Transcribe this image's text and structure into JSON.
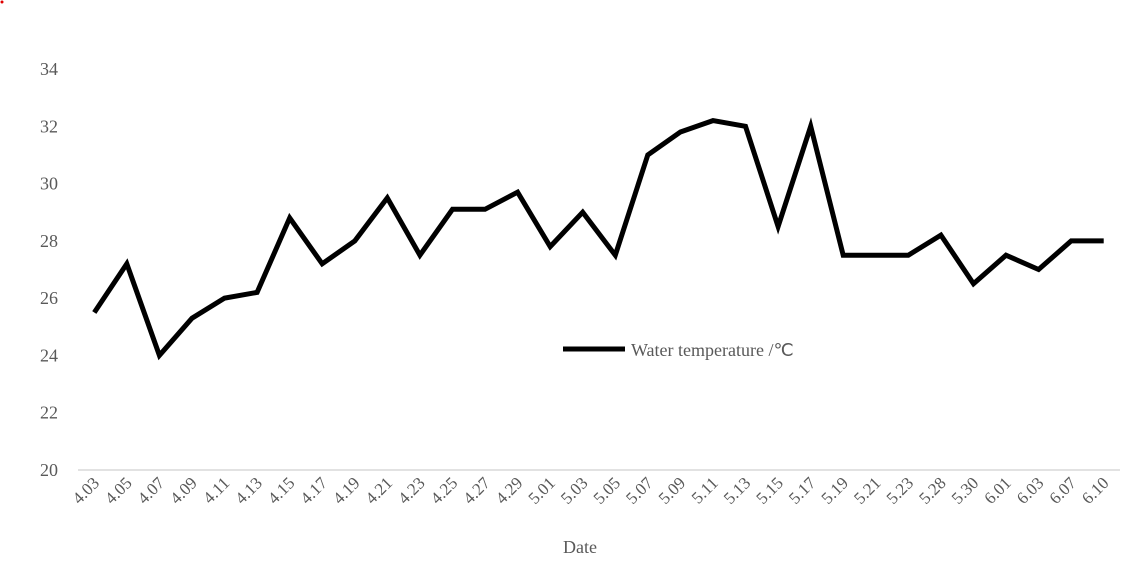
{
  "chart_data": {
    "type": "line",
    "title": "",
    "xlabel": "Date",
    "ylabel": "",
    "ylim": [
      20,
      34
    ],
    "yticks": [
      20,
      22,
      24,
      26,
      28,
      30,
      32,
      34
    ],
    "grid": false,
    "legend_position": "center",
    "categories": [
      "4.03",
      "4.05",
      "4.07",
      "4.09",
      "4.11",
      "4.13",
      "4.15",
      "4.17",
      "4.19",
      "4.21",
      "4.23",
      "4.25",
      "4.27",
      "4.29",
      "5.01",
      "5.03",
      "5.05",
      "5.07",
      "5.09",
      "5.11",
      "5.13",
      "5.15",
      "5.17",
      "5.19",
      "5.21",
      "5.23",
      "5.28",
      "5.30",
      "6.01",
      "6.03",
      "6.07",
      "6.10"
    ],
    "series": [
      {
        "name": "Water temperature /℃",
        "color": "#000000",
        "values": [
          25.5,
          27.2,
          24.0,
          25.3,
          26.0,
          26.2,
          28.8,
          27.2,
          28.0,
          29.5,
          27.5,
          29.1,
          29.1,
          29.7,
          27.8,
          29.0,
          27.5,
          31.0,
          31.8,
          32.2,
          32.0,
          28.5,
          32.0,
          27.5,
          27.5,
          27.5,
          28.2,
          26.5,
          27.5,
          27.0,
          28.0,
          28.0
        ]
      }
    ]
  }
}
